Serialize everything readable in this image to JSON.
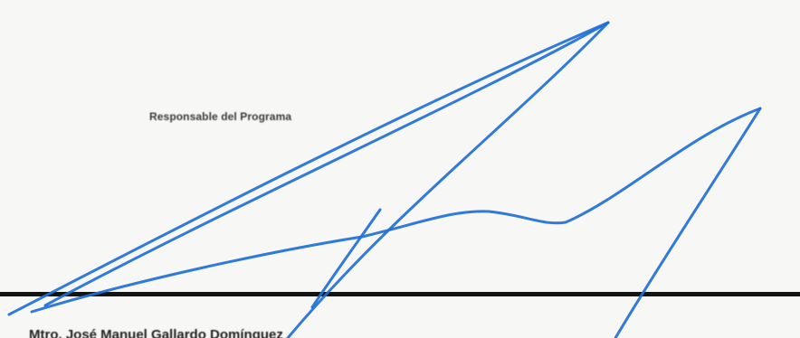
{
  "document": {
    "role_label": "Responsable del Programa",
    "signer_name": "Mtro. José Manuel Gallardo Domínguez",
    "ink_color": "#1f6fd6"
  }
}
